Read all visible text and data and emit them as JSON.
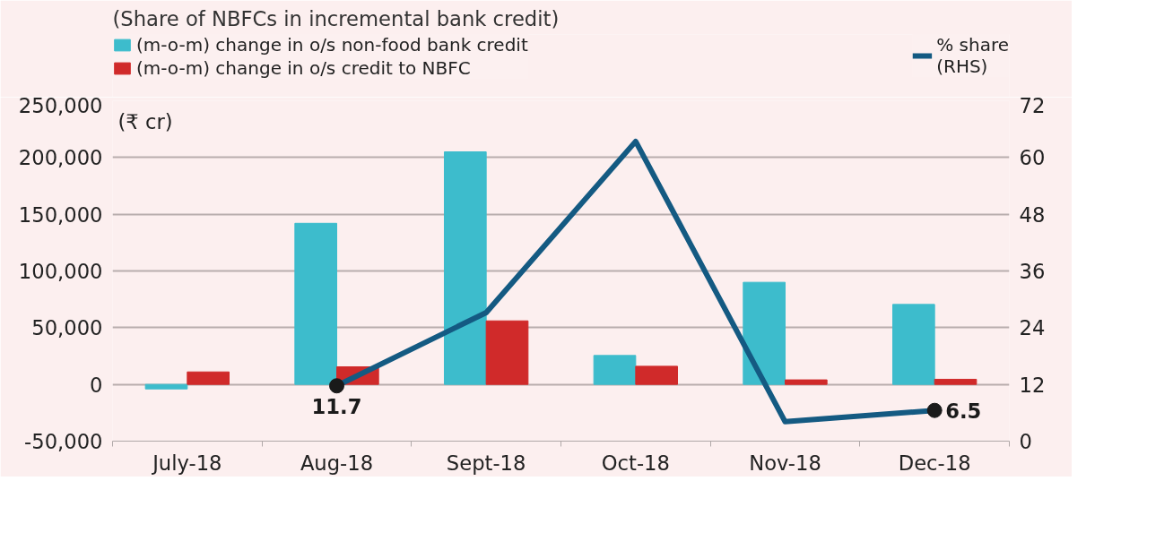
{
  "chart_data": {
    "type": "bar",
    "title": "(Share of NBFCs in incremental bank credit)",
    "ylabel": "(₹ cr)",
    "categories": [
      "July-18",
      "Aug-18",
      "Sept-18",
      "Oct-18",
      "Nov-18",
      "Dec-18"
    ],
    "series": [
      {
        "name": "(m-o-m) change in o/s non-food bank credit",
        "color": "#3dbccc",
        "values": [
          -4000,
          142000,
          205000,
          25500,
          90000,
          70500
        ]
      },
      {
        "name": "(m-o-m) change in o/s credit to NBFC",
        "color": "#d02a2a",
        "values": [
          11000,
          15500,
          56000,
          16000,
          4000,
          4500
        ]
      },
      {
        "name": "% share\n(RHS)",
        "type": "line",
        "axis": "y2",
        "color": "#145a82",
        "values": [
          null,
          11.7,
          27.2,
          63.4,
          4.1,
          6.5
        ],
        "value_labels": [
          null,
          "11.7",
          null,
          null,
          null,
          "6.5"
        ]
      }
    ],
    "ylim": [
      -50000,
      250000
    ],
    "yticks": [
      {
        "value": -50000,
        "label": "-50,000"
      },
      0,
      {
        "value": 50000,
        "label": "50,000"
      },
      {
        "value": 100000,
        "label": "100,000"
      },
      {
        "value": 150000,
        "label": "150,000"
      },
      {
        "value": 200000,
        "label": "200,000"
      },
      {
        "value": 250000,
        "label": "250,000"
      }
    ],
    "y2lim": [
      0,
      72
    ],
    "y2ticks": [
      0,
      12,
      24,
      36,
      48,
      60,
      72
    ],
    "grid": "y",
    "legend": "top"
  }
}
